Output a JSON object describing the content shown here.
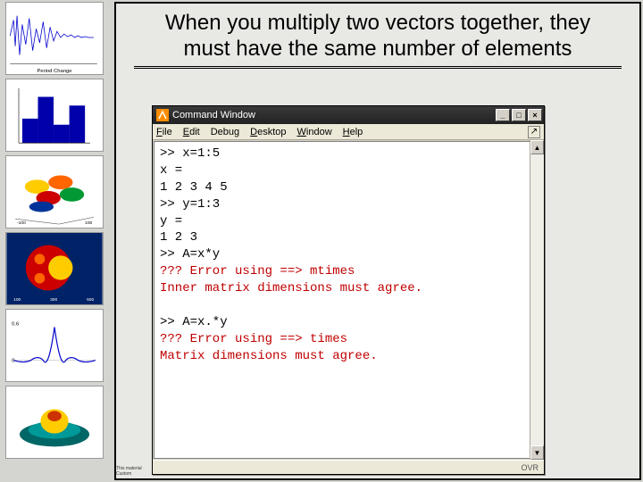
{
  "slide": {
    "title": "When you multiply two vectors together, they must have the same number of elements",
    "border_color": "#000000",
    "background_color": "#e8e8e4",
    "title_fontsize": 24
  },
  "thumbnails": [
    {
      "kind": "signal",
      "label": "Period Change",
      "accent": "#0000cc"
    },
    {
      "kind": "bars",
      "accent": "#0000cc"
    },
    {
      "kind": "surface",
      "accent": "#ff8c00"
    },
    {
      "kind": "fractal",
      "accent": "#cc0000"
    },
    {
      "kind": "sinc",
      "accent": "#0000cc"
    },
    {
      "kind": "hat",
      "accent": "#009999"
    }
  ],
  "command_window": {
    "title": "Command Window",
    "menus": [
      "File",
      "Edit",
      "Debug",
      "Desktop",
      "Window",
      "Help"
    ],
    "win_controls": {
      "min": "_",
      "max": "□",
      "close": "×"
    },
    "status_right": "OVR",
    "console": {
      "font_family": "Courier New",
      "fontsize": 14,
      "text_color": "#000000",
      "error_color": "#c00000",
      "background": "#ffffff",
      "lines": [
        {
          "t": ">> x=1:5"
        },
        {
          "t": "x ="
        },
        {
          "t": "     1     2     3     4     5",
          "cls": "row-vals"
        },
        {
          "t": ">> y=1:3"
        },
        {
          "t": "y ="
        },
        {
          "t": "     1     2     3",
          "cls": "row-vals"
        },
        {
          "t": ">> A=x*y"
        },
        {
          "t": "??? Error using ==> mtimes",
          "cls": "err"
        },
        {
          "t": "Inner matrix dimensions must agree.",
          "cls": "err"
        },
        {
          "t": ""
        },
        {
          "t": ">> A=x.*y"
        },
        {
          "t": "??? Error using ==> times",
          "cls": "err"
        },
        {
          "t": "Matrix dimensions must agree.",
          "cls": "err"
        }
      ]
    }
  },
  "footer": {
    "line1": "This material",
    "line2": "Custom"
  }
}
